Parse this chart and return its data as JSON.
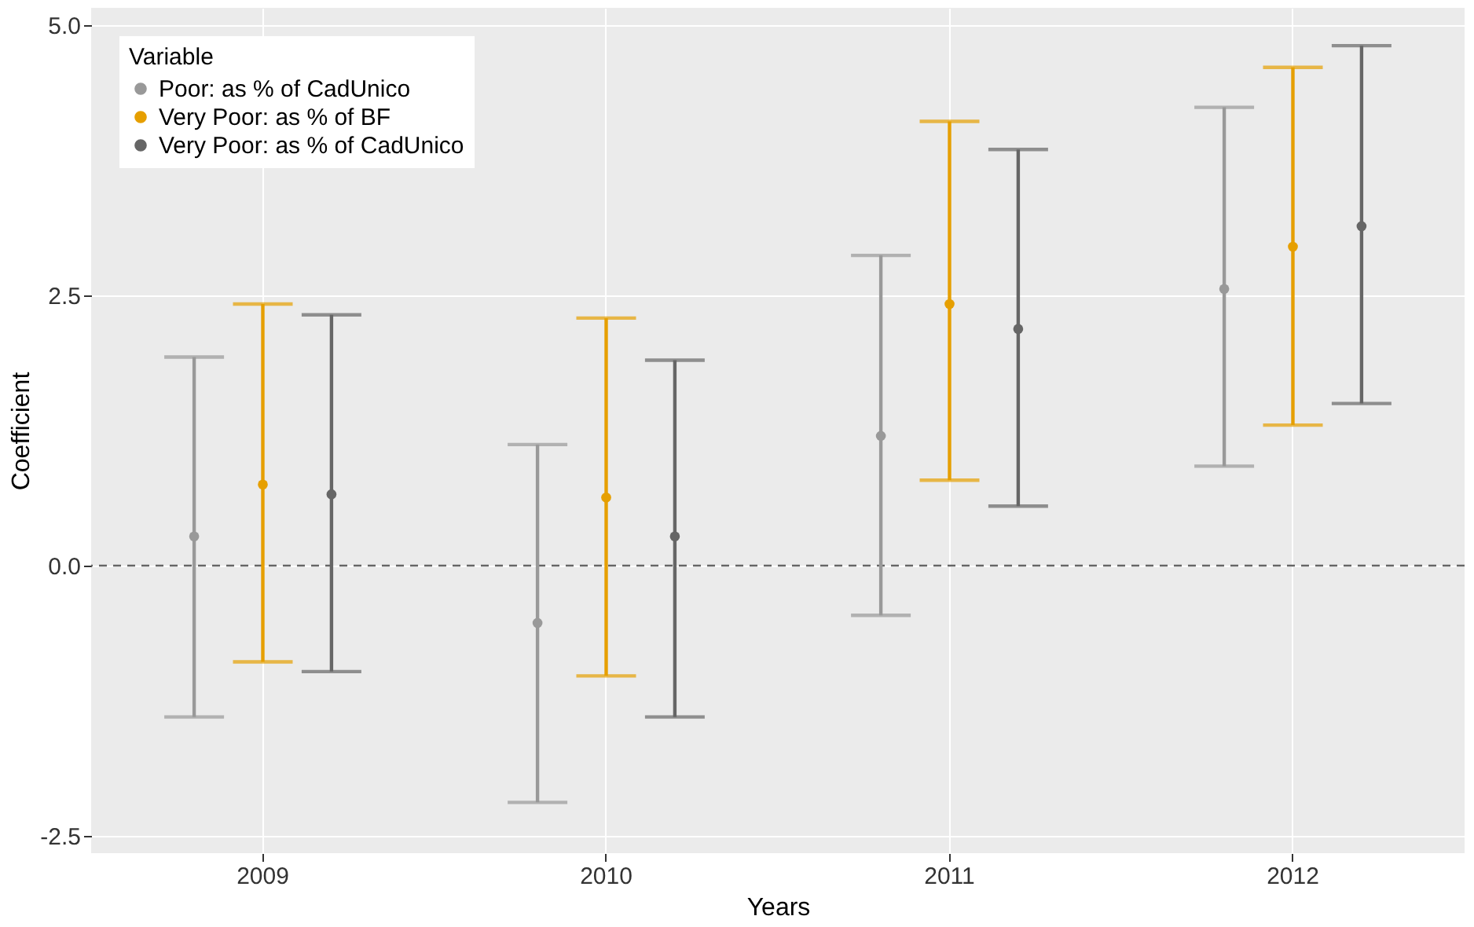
{
  "chart_data": {
    "type": "scatter",
    "xlabel": "Years",
    "ylabel": "Coefficient",
    "legend_title": "Variable",
    "categories": [
      "2009",
      "2010",
      "2011",
      "2012"
    ],
    "series": [
      {
        "name": "Poor: as % of CadUnico",
        "color": "#999999",
        "values": [
          0.27,
          -0.53,
          1.2,
          2.56
        ],
        "errors": [
          [
            -1.4,
            1.93
          ],
          [
            -2.19,
            1.12
          ],
          [
            -0.46,
            2.87
          ],
          [
            0.92,
            4.24
          ]
        ]
      },
      {
        "name": "Very Poor: as % of BF",
        "color": "#e69f00",
        "values": [
          0.75,
          0.63,
          2.42,
          2.95
        ],
        "errors": [
          [
            -0.89,
            2.42
          ],
          [
            -1.02,
            2.29
          ],
          [
            0.79,
            4.11
          ],
          [
            1.3,
            4.61
          ]
        ]
      },
      {
        "name": "Very Poor: as % of CadUnico",
        "color": "#666666",
        "values": [
          0.66,
          0.27,
          2.19,
          3.14
        ],
        "errors": [
          [
            -0.98,
            2.32
          ],
          [
            -1.4,
            1.9
          ],
          [
            0.55,
            3.85
          ],
          [
            1.5,
            4.81
          ]
        ]
      }
    ],
    "ylim": [
      -2.66,
      5.16
    ],
    "yticks": [
      {
        "value": -2.5,
        "label": "-2.5"
      },
      {
        "value": 0,
        "label": "0.0"
      },
      {
        "value": 2.5,
        "label": "2.5"
      },
      {
        "value": 5,
        "label": "5.0"
      }
    ],
    "ref_lines": [
      {
        "axis": "y",
        "value": 0,
        "line_style": "dashed",
        "color": "#666666"
      }
    ],
    "grid": true,
    "legend": "top left",
    "marker": "circle"
  }
}
